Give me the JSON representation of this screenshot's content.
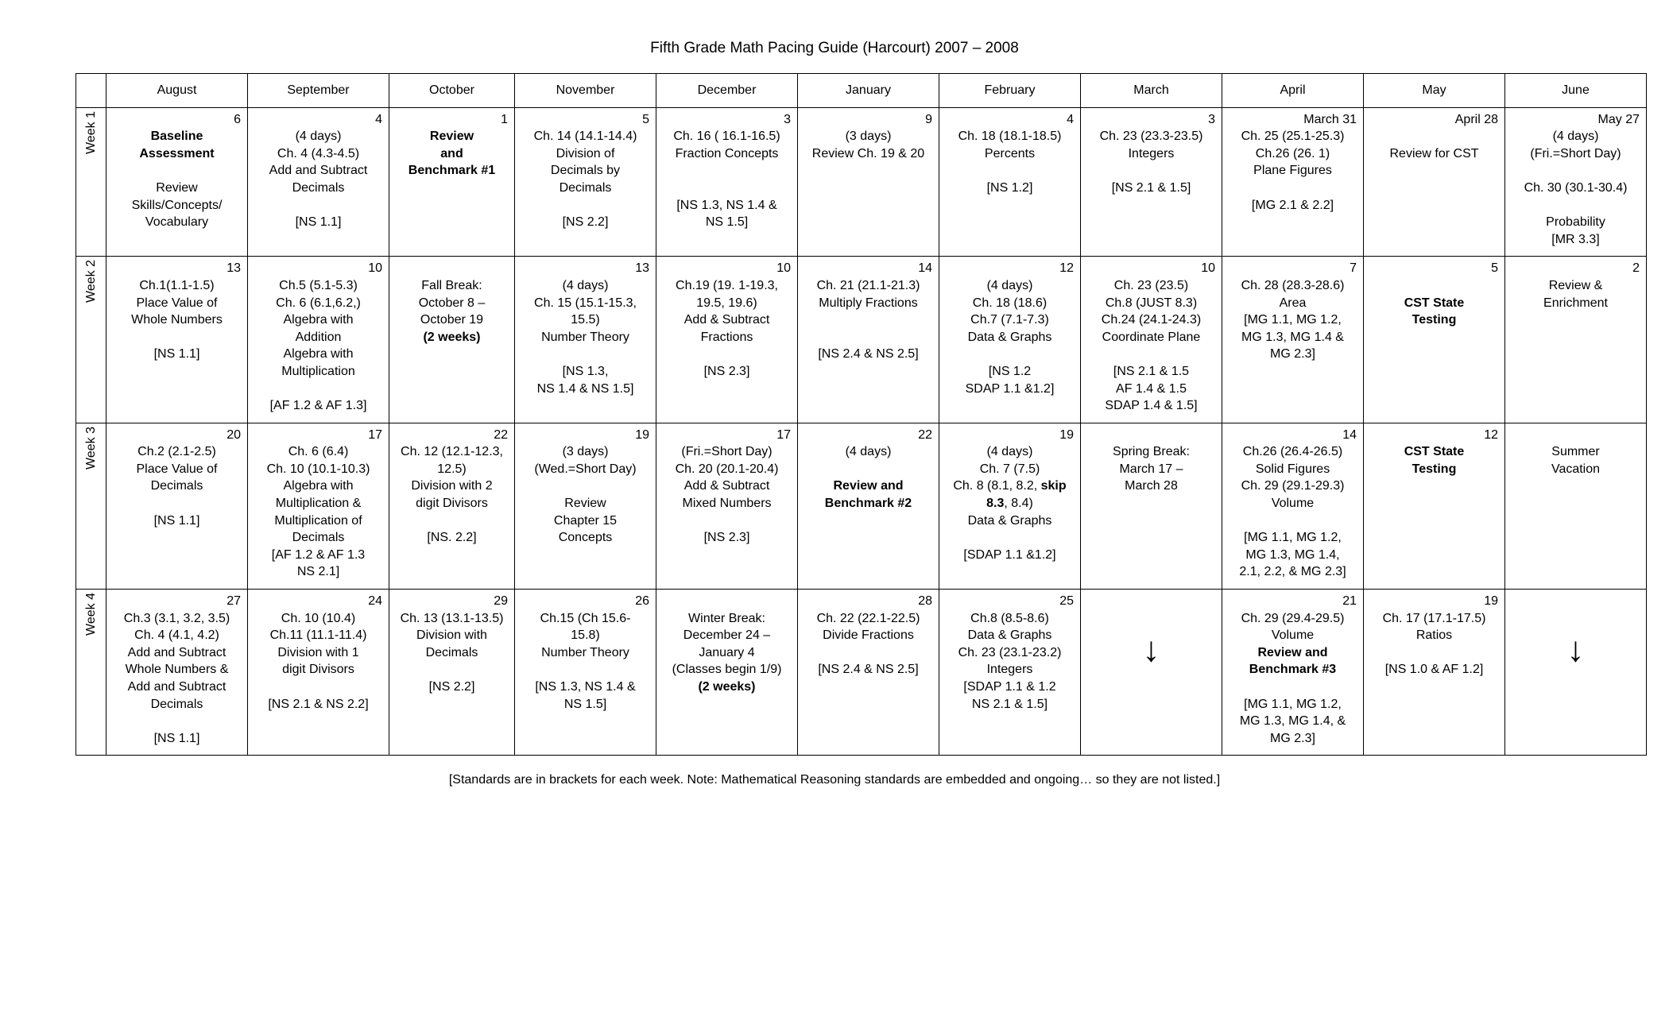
{
  "title": "Fifth Grade Math Pacing Guide (Harcourt) 2007 – 2008",
  "footnote": "[Standards are in brackets for each week. Note: Mathematical Reasoning standards are embedded and ongoing… so they are not listed.]",
  "months": [
    "August",
    "September",
    "October",
    "November",
    "December",
    "January",
    "February",
    "March",
    "April",
    "May",
    "June"
  ],
  "weeks": [
    "Week 1",
    "Week 2",
    "Week 3",
    "Week 4"
  ],
  "cells": {
    "w1": {
      "aug": {
        "date": "6",
        "lines": [
          {
            "t": "Baseline",
            "b": true
          },
          {
            "t": "Assessment",
            "b": true
          },
          {
            "t": ""
          },
          {
            "t": "Review"
          },
          {
            "t": "Skills/Concepts/"
          },
          {
            "t": "Vocabulary"
          }
        ]
      },
      "sep": {
        "date": "4",
        "lines": [
          {
            "t": "(4 days)"
          },
          {
            "t": "Ch. 4 (4.3-4.5)"
          },
          {
            "t": "Add and Subtract"
          },
          {
            "t": "Decimals"
          },
          {
            "t": ""
          },
          {
            "t": "[NS 1.1]"
          }
        ]
      },
      "oct": {
        "date": "1",
        "lines": [
          {
            "t": "Review",
            "b": true
          },
          {
            "t": "and",
            "b": true
          },
          {
            "t": "Benchmark #1",
            "b": true
          }
        ]
      },
      "nov": {
        "date": "5",
        "lines": [
          {
            "t": "Ch. 14 (14.1-14.4)"
          },
          {
            "t": "Division of"
          },
          {
            "t": "Decimals by"
          },
          {
            "t": "Decimals"
          },
          {
            "t": ""
          },
          {
            "t": "[NS 2.2]"
          }
        ]
      },
      "dec": {
        "date": "3",
        "lines": [
          {
            "t": "Ch. 16 ( 16.1-16.5)"
          },
          {
            "t": "Fraction Concepts"
          },
          {
            "t": ""
          },
          {
            "t": ""
          },
          {
            "t": "[NS 1.3, NS 1.4 &"
          },
          {
            "t": "NS 1.5]"
          }
        ]
      },
      "jan": {
        "date": "9",
        "lines": [
          {
            "t": "(3 days)"
          },
          {
            "t": "Review Ch. 19 & 20"
          }
        ]
      },
      "feb": {
        "date": "4",
        "lines": [
          {
            "t": "Ch. 18 (18.1-18.5)"
          },
          {
            "t": "Percents"
          },
          {
            "t": ""
          },
          {
            "t": "[NS 1.2]"
          }
        ]
      },
      "mar": {
        "date": "3",
        "lines": [
          {
            "t": "Ch. 23 (23.3-23.5)"
          },
          {
            "t": "Integers"
          },
          {
            "t": ""
          },
          {
            "t": "[NS 2.1 & 1.5]"
          }
        ]
      },
      "apr": {
        "date": "March 31",
        "lines": [
          {
            "t": "Ch. 25 (25.1-25.3)"
          },
          {
            "t": "Ch.26 (26. 1)"
          },
          {
            "t": "Plane Figures"
          },
          {
            "t": ""
          },
          {
            "t": "[MG 2.1 & 2.2]"
          }
        ]
      },
      "may": {
        "date": "April 28",
        "lines": [
          {
            "t": ""
          },
          {
            "t": "Review for CST"
          }
        ]
      },
      "jun": {
        "date": "May 27",
        "lines": [
          {
            "t": "(4 days)"
          },
          {
            "t": "(Fri.=Short Day)"
          },
          {
            "t": ""
          },
          {
            "t": "Ch. 30 (30.1-30.4)"
          },
          {
            "t": ""
          },
          {
            "t": "Probability"
          },
          {
            "t": "[MR 3.3]"
          }
        ]
      }
    },
    "w2": {
      "aug": {
        "date": "13",
        "lines": [
          {
            "t": "Ch.1(1.1-1.5)"
          },
          {
            "t": "Place Value of"
          },
          {
            "t": "Whole Numbers"
          },
          {
            "t": ""
          },
          {
            "t": "[NS 1.1]"
          }
        ]
      },
      "sep": {
        "date": "10",
        "lines": [
          {
            "t": "Ch.5 (5.1-5.3)"
          },
          {
            "t": "Ch. 6 (6.1,6.2,)"
          },
          {
            "t": "Algebra with"
          },
          {
            "t": "Addition"
          },
          {
            "t": "Algebra with"
          },
          {
            "t": "Multiplication"
          },
          {
            "t": ""
          },
          {
            "t": "[AF 1.2 & AF 1.3]"
          }
        ]
      },
      "oct": {
        "date": "",
        "lines": [
          {
            "t": ""
          },
          {
            "t": "Fall Break:"
          },
          {
            "t": "October 8 –"
          },
          {
            "t": "October 19"
          },
          {
            "t": "(2 weeks)",
            "b": true
          }
        ]
      },
      "nov": {
        "date": "13",
        "lines": [
          {
            "t": "(4 days)"
          },
          {
            "t": "Ch. 15 (15.1-15.3,"
          },
          {
            "t": "15.5)"
          },
          {
            "t": "Number Theory"
          },
          {
            "t": ""
          },
          {
            "t": "[NS 1.3,"
          },
          {
            "t": "NS 1.4 & NS 1.5]"
          }
        ]
      },
      "dec": {
        "date": "10",
        "lines": [
          {
            "t": "Ch.19 (19. 1-19.3,"
          },
          {
            "t": "19.5, 19.6)"
          },
          {
            "t": "Add & Subtract"
          },
          {
            "t": "Fractions"
          },
          {
            "t": ""
          },
          {
            "t": "[NS 2.3]"
          }
        ]
      },
      "jan": {
        "date": "14",
        "lines": [
          {
            "t": "Ch. 21 (21.1-21.3)"
          },
          {
            "t": "Multiply Fractions"
          },
          {
            "t": ""
          },
          {
            "t": ""
          },
          {
            "t": "[NS 2.4 & NS 2.5]"
          }
        ]
      },
      "feb": {
        "date": "12",
        "lines": [
          {
            "t": "(4 days)"
          },
          {
            "t": "Ch. 18 (18.6)"
          },
          {
            "t": "Ch.7 (7.1-7.3)"
          },
          {
            "t": "Data & Graphs"
          },
          {
            "t": ""
          },
          {
            "t": "[NS 1.2"
          },
          {
            "t": "SDAP 1.1 &1.2]"
          }
        ]
      },
      "mar": {
        "date": "10",
        "lines": [
          {
            "t": "Ch. 23 (23.5)"
          },
          {
            "t": "Ch.8 (JUST 8.3)"
          },
          {
            "t": "Ch.24 (24.1-24.3)"
          },
          {
            "t": "Coordinate Plane"
          },
          {
            "t": ""
          },
          {
            "t": "[NS 2.1 & 1.5"
          },
          {
            "t": "AF 1.4 & 1.5"
          },
          {
            "t": "SDAP 1.4 & 1.5]"
          }
        ]
      },
      "apr": {
        "date": "7",
        "lines": [
          {
            "t": "Ch. 28 (28.3-28.6)"
          },
          {
            "t": "Area"
          },
          {
            "t": "[MG 1.1, MG 1.2,"
          },
          {
            "t": "MG 1.3, MG 1.4 &"
          },
          {
            "t": "MG 2.3]"
          }
        ]
      },
      "may": {
        "date": "5",
        "lines": [
          {
            "t": ""
          },
          {
            "t": "CST State",
            "b": true
          },
          {
            "t": "Testing",
            "b": true
          }
        ]
      },
      "jun": {
        "date": "2",
        "lines": [
          {
            "t": "Review &"
          },
          {
            "t": "Enrichment"
          }
        ]
      }
    },
    "w3": {
      "aug": {
        "date": "20",
        "lines": [
          {
            "t": "Ch.2 (2.1-2.5)"
          },
          {
            "t": "Place Value of"
          },
          {
            "t": "Decimals"
          },
          {
            "t": ""
          },
          {
            "t": "[NS 1.1]"
          }
        ]
      },
      "sep": {
        "date": "17",
        "lines": [
          {
            "t": "Ch. 6 (6.4)"
          },
          {
            "t": "Ch. 10 (10.1-10.3)"
          },
          {
            "t": "Algebra with"
          },
          {
            "t": "Multiplication &"
          },
          {
            "t": "Multiplication of"
          },
          {
            "t": "Decimals"
          },
          {
            "t": "[AF 1.2 & AF 1.3"
          },
          {
            "t": "NS 2.1]"
          }
        ]
      },
      "oct": {
        "date": "22",
        "lines": [
          {
            "t": "Ch. 12 (12.1-12.3,"
          },
          {
            "t": "12.5)"
          },
          {
            "t": "Division with 2"
          },
          {
            "t": "digit Divisors"
          },
          {
            "t": ""
          },
          {
            "t": "[NS. 2.2]"
          }
        ]
      },
      "nov": {
        "date": "19",
        "lines": [
          {
            "t": "(3 days)"
          },
          {
            "t": "(Wed.=Short Day)"
          },
          {
            "t": ""
          },
          {
            "t": "Review"
          },
          {
            "t": "Chapter 15"
          },
          {
            "t": "Concepts"
          }
        ]
      },
      "dec": {
        "date": "17",
        "lines": [
          {
            "t": "(Fri.=Short Day)"
          },
          {
            "t": "Ch. 20 (20.1-20.4)"
          },
          {
            "t": "Add & Subtract"
          },
          {
            "t": "Mixed Numbers"
          },
          {
            "t": ""
          },
          {
            "t": "[NS 2.3]"
          }
        ]
      },
      "jan": {
        "date": "22",
        "lines": [
          {
            "t": "(4 days)"
          },
          {
            "t": ""
          },
          {
            "t": "Review and",
            "b": true
          },
          {
            "t": "Benchmark #2",
            "b": true
          }
        ]
      },
      "feb": {
        "date": "19",
        "lines": [
          {
            "t": "(4 days)"
          },
          {
            "t": "Ch. 7 (7.5)"
          },
          {
            "t": "Ch. 8 (8.1, 8.2, "
          },
          {
            "t": "8.3, 8.4)",
            "skipbold": true
          },
          {
            "t": "Data & Graphs"
          },
          {
            "t": ""
          },
          {
            "t": "[SDAP 1.1 &1.2]"
          }
        ]
      },
      "mar": {
        "date": "",
        "lines": [
          {
            "t": ""
          },
          {
            "t": "Spring Break:"
          },
          {
            "t": "March 17 –"
          },
          {
            "t": "March 28"
          }
        ]
      },
      "apr": {
        "date": "14",
        "lines": [
          {
            "t": "Ch.26 (26.4-26.5)"
          },
          {
            "t": "Solid Figures"
          },
          {
            "t": "Ch. 29 (29.1-29.3)"
          },
          {
            "t": "Volume"
          },
          {
            "t": ""
          },
          {
            "t": "[MG 1.1, MG 1.2,"
          },
          {
            "t": "MG 1.3, MG 1.4,"
          },
          {
            "t": "2.1, 2.2, & MG 2.3]"
          }
        ]
      },
      "may": {
        "date": "12",
        "lines": [
          {
            "t": "CST State",
            "b": true
          },
          {
            "t": "Testing",
            "b": true
          }
        ]
      },
      "jun": {
        "date": "",
        "lines": [
          {
            "t": ""
          },
          {
            "t": "Summer"
          },
          {
            "t": "Vacation"
          }
        ]
      }
    },
    "w4": {
      "aug": {
        "date": "27",
        "lines": [
          {
            "t": "Ch.3 (3.1, 3.2, 3.5)"
          },
          {
            "t": "Ch. 4 (4.1, 4.2)"
          },
          {
            "t": "Add and Subtract"
          },
          {
            "t": "Whole Numbers &"
          },
          {
            "t": "Add and Subtract"
          },
          {
            "t": "Decimals"
          },
          {
            "t": ""
          },
          {
            "t": "[NS 1.1]"
          }
        ]
      },
      "sep": {
        "date": "24",
        "lines": [
          {
            "t": "Ch. 10 (10.4)"
          },
          {
            "t": "Ch.11 (11.1-11.4)"
          },
          {
            "t": "Division with 1"
          },
          {
            "t": "digit Divisors"
          },
          {
            "t": ""
          },
          {
            "t": "[NS 2.1 & NS 2.2]"
          }
        ]
      },
      "oct": {
        "date": "29",
        "lines": [
          {
            "t": "Ch. 13 (13.1-13.5)"
          },
          {
            "t": "Division with"
          },
          {
            "t": "Decimals"
          },
          {
            "t": ""
          },
          {
            "t": "[NS 2.2]"
          }
        ]
      },
      "nov": {
        "date": "26",
        "lines": [
          {
            "t": "Ch.15 (Ch 15.6-"
          },
          {
            "t": "15.8)"
          },
          {
            "t": "Number Theory"
          },
          {
            "t": ""
          },
          {
            "t": "[NS 1.3, NS 1.4 &"
          },
          {
            "t": "NS 1.5]"
          }
        ]
      },
      "dec": {
        "date": "",
        "lines": [
          {
            "t": ""
          },
          {
            "t": "Winter Break:"
          },
          {
            "t": "December 24 –"
          },
          {
            "t": "January 4"
          },
          {
            "t": "(Classes begin 1/9)"
          },
          {
            "t": "(2 weeks)",
            "b": true
          }
        ]
      },
      "jan": {
        "date": "28",
        "lines": [
          {
            "t": "Ch. 22 (22.1-22.5)"
          },
          {
            "t": "Divide Fractions"
          },
          {
            "t": ""
          },
          {
            "t": "[NS 2.4 & NS 2.5]"
          }
        ]
      },
      "feb": {
        "date": "25",
        "lines": [
          {
            "t": "Ch.8 (8.5-8.6)"
          },
          {
            "t": "Data & Graphs"
          },
          {
            "t": "Ch. 23 (23.1-23.2)"
          },
          {
            "t": "Integers"
          },
          {
            "t": "[SDAP 1.1 & 1.2"
          },
          {
            "t": "NS 2.1 & 1.5]"
          }
        ]
      },
      "mar": {
        "arrow": true
      },
      "apr": {
        "date": "21",
        "lines": [
          {
            "t": "Ch. 29 (29.4-29.5)"
          },
          {
            "t": "Volume"
          },
          {
            "t": "Review and",
            "b": true
          },
          {
            "t": "Benchmark #3",
            "b": true
          },
          {
            "t": ""
          },
          {
            "t": "[MG 1.1, MG 1.2,"
          },
          {
            "t": "MG 1.3, MG 1.4, &"
          },
          {
            "t": "MG 2.3]"
          }
        ]
      },
      "may": {
        "date": "19",
        "lines": [
          {
            "t": "Ch. 17 (17.1-17.5)"
          },
          {
            "t": "Ratios"
          },
          {
            "t": ""
          },
          {
            "t": "[NS 1.0 & AF 1.2]"
          }
        ]
      },
      "jun": {
        "arrow": true
      }
    }
  },
  "feb_w3_special": "Ch. 8 (8.1, 8.2, skip"
}
